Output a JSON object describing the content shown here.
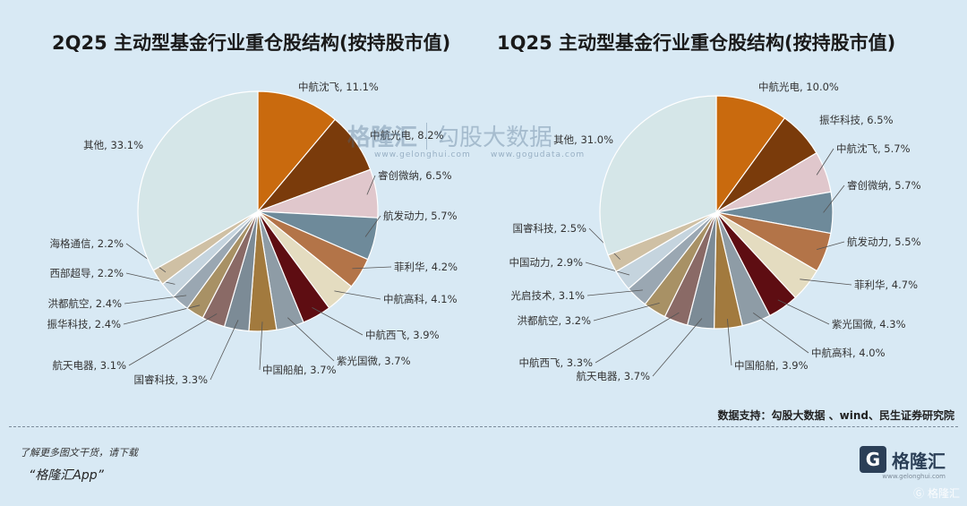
{
  "chart_data": [
    {
      "type": "pie",
      "title": "2Q25 主动型基金行业重仓股结构(按持股市值)",
      "slices": [
        {
          "label": "中航沈飞, 11.1%",
          "value": 11.1,
          "color": "#c96a0e"
        },
        {
          "label": "中航光电, 8.2%",
          "value": 8.2,
          "color": "#7a3b0b"
        },
        {
          "label": "睿创微纳, 6.5%",
          "value": 6.5,
          "color": "#e0c7cc"
        },
        {
          "label": "航发动力, 5.7%",
          "value": 5.7,
          "color": "#6e8a9a"
        },
        {
          "label": "菲利华, 4.2%",
          "value": 4.2,
          "color": "#b37448"
        },
        {
          "label": "中航高科, 4.1%",
          "value": 4.1,
          "color": "#e4dcc0"
        },
        {
          "label": "中航西飞, 3.9%",
          "value": 3.9,
          "color": "#5e0d12"
        },
        {
          "label": "紫光国微, 3.7%",
          "value": 3.7,
          "color": "#8e9ca6"
        },
        {
          "label": "中国船舶, 3.7%",
          "value": 3.7,
          "color": "#a27a3e"
        },
        {
          "label": "国睿科技, 3.3%",
          "value": 3.3,
          "color": "#7c8b96"
        },
        {
          "label": "航天电器, 3.1%",
          "value": 3.1,
          "color": "#8a6a66"
        },
        {
          "label": "振华科技, 2.4%",
          "value": 2.4,
          "color": "#a89165"
        },
        {
          "label": "洪都航空, 2.4%",
          "value": 2.4,
          "color": "#9aa7b2"
        },
        {
          "label": "西部超导, 2.2%",
          "value": 2.2,
          "color": "#c5d4de"
        },
        {
          "label": "海格通信, 2.2%",
          "value": 2.2,
          "color": "#cfc0a4"
        },
        {
          "label": "其他, 33.1%",
          "value": 33.1,
          "color": "#d5e6e8"
        }
      ]
    },
    {
      "type": "pie",
      "title": "1Q25 主动型基金行业重仓股结构(按持股市值)",
      "slices": [
        {
          "label": "中航光电, 10.0%",
          "value": 10.0,
          "color": "#c96a0e"
        },
        {
          "label": "振华科技, 6.5%",
          "value": 6.5,
          "color": "#7a3b0b"
        },
        {
          "label": "中航沈飞, 5.7%",
          "value": 5.7,
          "color": "#e0c7cc"
        },
        {
          "label": "睿创微纳, 5.7%",
          "value": 5.7,
          "color": "#6e8a9a"
        },
        {
          "label": "航发动力, 5.5%",
          "value": 5.5,
          "color": "#b37448"
        },
        {
          "label": "菲利华, 4.7%",
          "value": 4.7,
          "color": "#e4dcc0"
        },
        {
          "label": "紫光国微, 4.3%",
          "value": 4.3,
          "color": "#5e0d12"
        },
        {
          "label": "中航高科, 4.0%",
          "value": 4.0,
          "color": "#8e9ca6"
        },
        {
          "label": "中国船舶, 3.9%",
          "value": 3.9,
          "color": "#a27a3e"
        },
        {
          "label": "航天电器, 3.7%",
          "value": 3.7,
          "color": "#7c8b96"
        },
        {
          "label": "中航西飞, 3.3%",
          "value": 3.3,
          "color": "#8a6a66"
        },
        {
          "label": "洪都航空, 3.2%",
          "value": 3.2,
          "color": "#a89165"
        },
        {
          "label": "光启技术, 3.1%",
          "value": 3.1,
          "color": "#9aa7b2"
        },
        {
          "label": "中国动力, 2.9%",
          "value": 2.9,
          "color": "#c5d4de"
        },
        {
          "label": "国睿科技, 2.5%",
          "value": 2.5,
          "color": "#cfc0a4"
        },
        {
          "label": "其他, 31.0%",
          "value": 31.0,
          "color": "#d5e6e8"
        }
      ]
    }
  ],
  "source": "数据支持：勾股大数据 、wind、民生证券研究院",
  "footer": {
    "note": "了解更多图文干货，请下载",
    "app": "“格隆汇App”"
  },
  "logo": {
    "mark": "G",
    "name": "格隆汇",
    "url": "www.gelonghui.com",
    "corner": "Ⓖ 格隆汇"
  },
  "watermark": {
    "logo": "格隆汇",
    "gogu": "勾股大数据",
    "url1": "www.gelonghui.com",
    "url2": "www.gogudata.com"
  }
}
